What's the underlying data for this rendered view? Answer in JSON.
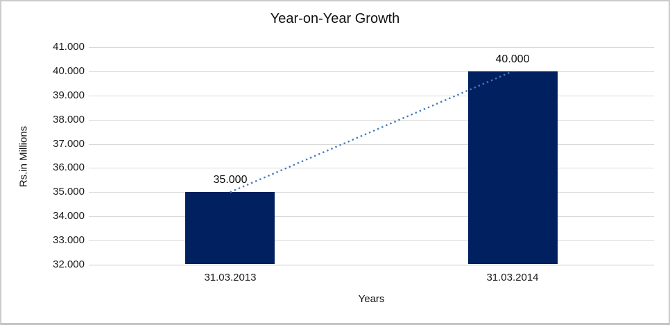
{
  "chart_data": {
    "type": "bar",
    "title": "Year-on-Year Growth",
    "xlabel": "Years",
    "ylabel": "Rs.in Millions",
    "categories": [
      "31.03.2013",
      "31.03.2014"
    ],
    "values": [
      35000,
      40000
    ],
    "value_labels": [
      "35.000",
      "40.000"
    ],
    "ytick_labels": [
      "41.000",
      "40.000",
      "39.000",
      "38.000",
      "37.000",
      "36.000",
      "35.000",
      "34.000",
      "33.000",
      "32.000"
    ],
    "ylim": [
      32000,
      41000
    ],
    "y_step": 1000,
    "grid": true,
    "legend": false,
    "trendline": {
      "style": "dotted",
      "from": {
        "category": "31.03.2013",
        "value": 35000
      },
      "to": {
        "category": "31.03.2014",
        "value": 40000
      }
    },
    "colors": {
      "bar": "#002060",
      "trendline": "#4779BE",
      "gridline": "#D9D9D9",
      "axis_line": "#C9C9C9",
      "text": "#121212"
    }
  }
}
